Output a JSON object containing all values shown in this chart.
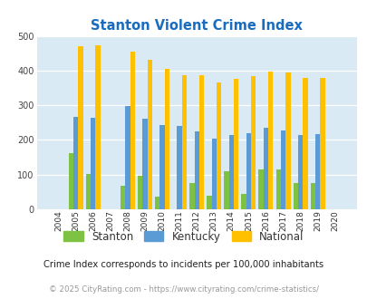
{
  "title": "Stanton Violent Crime Index",
  "years": [
    2004,
    2005,
    2006,
    2007,
    2008,
    2009,
    2010,
    2011,
    2012,
    2013,
    2014,
    2015,
    2016,
    2017,
    2018,
    2019,
    2020
  ],
  "stanton": [
    0,
    163,
    101,
    0,
    67,
    96,
    37,
    0,
    77,
    38,
    111,
    44,
    115,
    115,
    77,
    77,
    0
  ],
  "kentucky": [
    0,
    267,
    265,
    0,
    298,
    260,
    244,
    240,
    224,
    203,
    215,
    220,
    235,
    228,
    215,
    218,
    0
  ],
  "national": [
    0,
    469,
    472,
    0,
    455,
    431,
    405,
    387,
    387,
    366,
    377,
    383,
    398,
    394,
    380,
    379,
    0
  ],
  "stanton_color": "#7dc242",
  "kentucky_color": "#5b9bd5",
  "national_color": "#ffc000",
  "plot_bg": "#daeaf4",
  "ylim": [
    0,
    500
  ],
  "yticks": [
    0,
    100,
    200,
    300,
    400,
    500
  ],
  "subtitle": "Crime Index corresponds to incidents per 100,000 inhabitants",
  "footer": "© 2025 CityRating.com - https://www.cityrating.com/crime-statistics/",
  "title_color": "#1a6dbe",
  "subtitle_color": "#222222",
  "footer_color": "#999999"
}
